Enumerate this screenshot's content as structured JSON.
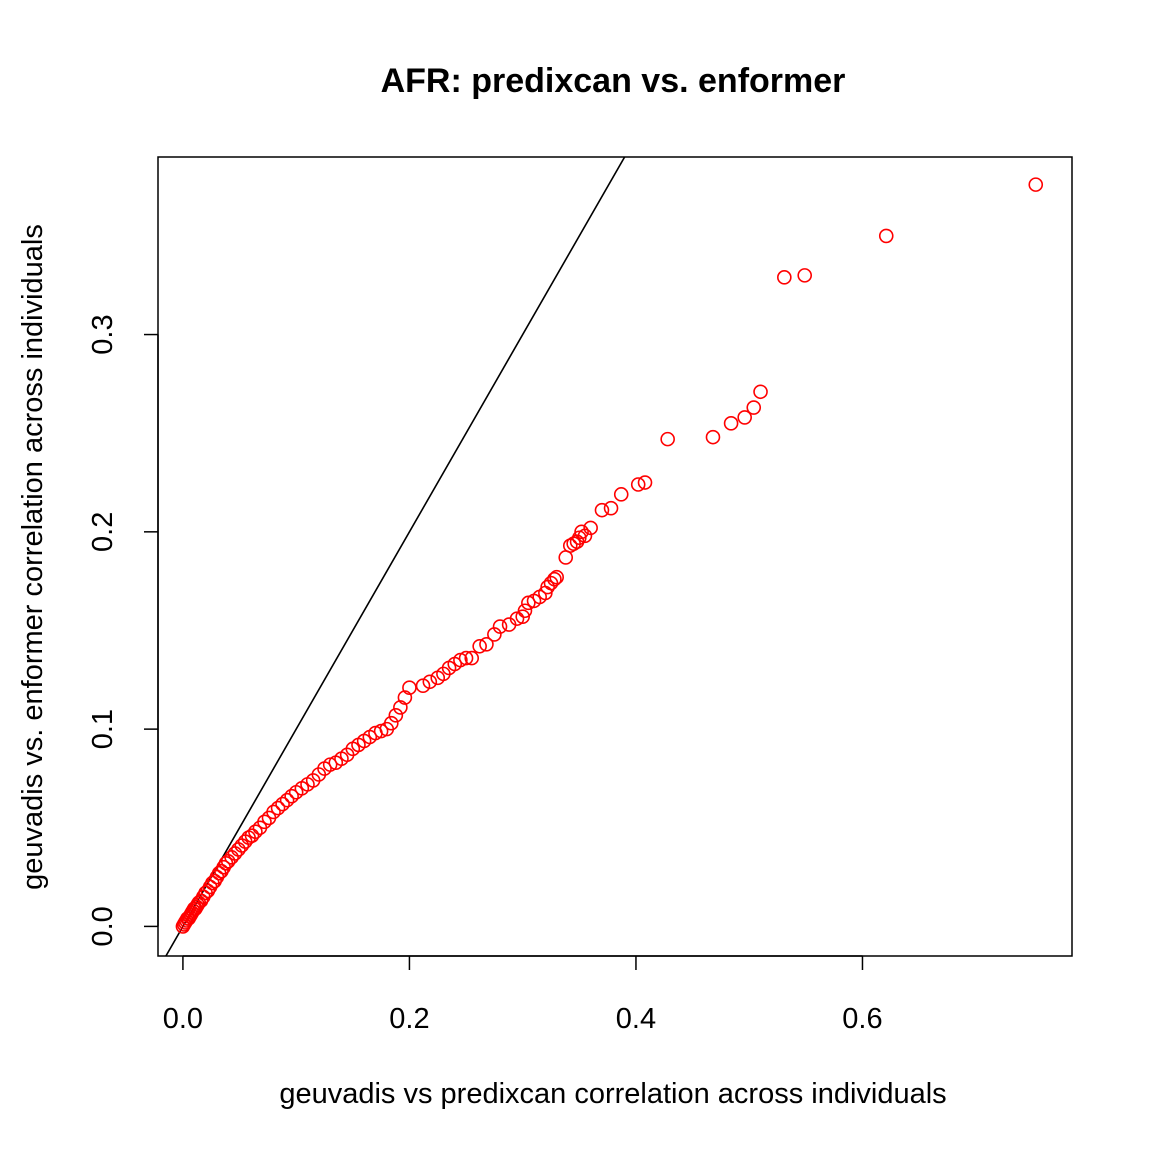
{
  "chart_data": {
    "type": "scatter",
    "title": "AFR: predixcan vs. enformer",
    "xlabel": "geuvadis vs predixcan correlation across individuals",
    "ylabel": "geuvadis vs. enformer correlation across individuals",
    "xlim": [
      -0.022,
      0.785
    ],
    "ylim": [
      -0.015,
      0.39
    ],
    "x_ticks": [
      0.0,
      0.2,
      0.4,
      0.6
    ],
    "x_tick_labels": [
      "0.0",
      "0.2",
      "0.4",
      "0.6"
    ],
    "y_ticks": [
      0.0,
      0.1,
      0.2,
      0.3
    ],
    "y_tick_labels": [
      "0.0",
      "0.1",
      "0.2",
      "0.3"
    ],
    "grid": false,
    "legend": "none",
    "point_color": "#ff0000",
    "point_style": "open-circle",
    "reference_line": {
      "type": "identity",
      "slope": 1,
      "intercept": 0,
      "color": "#000000"
    },
    "series": [
      {
        "x": [
          0.0,
          0.001,
          0.002,
          0.003,
          0.004,
          0.005,
          0.006,
          0.007,
          0.008,
          0.009,
          0.01,
          0.011,
          0.012,
          0.013,
          0.014,
          0.016,
          0.018,
          0.02,
          0.022,
          0.024,
          0.026,
          0.028,
          0.03,
          0.032,
          0.034,
          0.036,
          0.038,
          0.04,
          0.043,
          0.046,
          0.049,
          0.052,
          0.055,
          0.058,
          0.061,
          0.064,
          0.068,
          0.072,
          0.076,
          0.08,
          0.084,
          0.088,
          0.092,
          0.096,
          0.1,
          0.105,
          0.11,
          0.115,
          0.12,
          0.125,
          0.13,
          0.135,
          0.14,
          0.145,
          0.15,
          0.155,
          0.16,
          0.165,
          0.17,
          0.175,
          0.18,
          0.184,
          0.188,
          0.192,
          0.196,
          0.2,
          0.212,
          0.218,
          0.225,
          0.23,
          0.235,
          0.24,
          0.245,
          0.25,
          0.255,
          0.262,
          0.268,
          0.275,
          0.28,
          0.288,
          0.295,
          0.3,
          0.302,
          0.305,
          0.31,
          0.315,
          0.32,
          0.322,
          0.325,
          0.328,
          0.33,
          0.338,
          0.342,
          0.345,
          0.348,
          0.35,
          0.352,
          0.355,
          0.36,
          0.37,
          0.378,
          0.387,
          0.402,
          0.408,
          0.428,
          0.468,
          0.484,
          0.496,
          0.504,
          0.51,
          0.531,
          0.549,
          0.621,
          0.753
        ],
        "y": [
          0.0,
          0.001,
          0.002,
          0.003,
          0.004,
          0.004,
          0.005,
          0.006,
          0.007,
          0.008,
          0.009,
          0.009,
          0.01,
          0.011,
          0.012,
          0.013,
          0.015,
          0.017,
          0.018,
          0.02,
          0.022,
          0.023,
          0.025,
          0.027,
          0.028,
          0.03,
          0.032,
          0.033,
          0.035,
          0.037,
          0.039,
          0.041,
          0.043,
          0.045,
          0.046,
          0.048,
          0.05,
          0.053,
          0.055,
          0.058,
          0.06,
          0.062,
          0.064,
          0.066,
          0.068,
          0.07,
          0.072,
          0.074,
          0.077,
          0.08,
          0.082,
          0.083,
          0.085,
          0.087,
          0.09,
          0.092,
          0.094,
          0.096,
          0.098,
          0.099,
          0.1,
          0.103,
          0.107,
          0.111,
          0.116,
          0.121,
          0.122,
          0.124,
          0.126,
          0.128,
          0.131,
          0.133,
          0.135,
          0.136,
          0.136,
          0.142,
          0.143,
          0.148,
          0.152,
          0.153,
          0.156,
          0.157,
          0.16,
          0.164,
          0.165,
          0.167,
          0.169,
          0.172,
          0.174,
          0.176,
          0.177,
          0.187,
          0.193,
          0.194,
          0.195,
          0.197,
          0.2,
          0.198,
          0.202,
          0.211,
          0.212,
          0.219,
          0.224,
          0.225,
          0.247,
          0.248,
          0.255,
          0.258,
          0.263,
          0.271,
          0.329,
          0.33,
          0.35,
          0.376
        ]
      }
    ]
  }
}
